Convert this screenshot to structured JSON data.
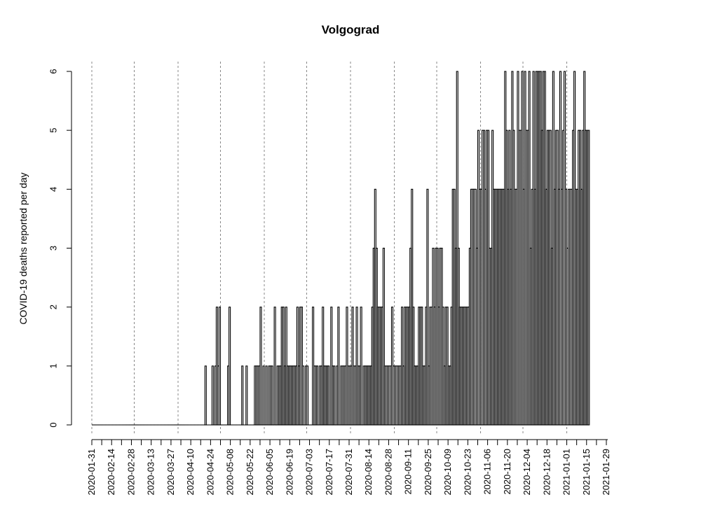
{
  "chart_data": {
    "type": "bar",
    "title": "Volgograd",
    "xlabel": "",
    "ylabel": "COVID-19 deaths reported per day",
    "ylim": [
      0,
      6
    ],
    "yticks": [
      0,
      1,
      2,
      3,
      4,
      5,
      6
    ],
    "x_start": "2020-01-31",
    "x_end": "2021-01-30",
    "xtick_labels": [
      "2020-01-31",
      "2020-02-14",
      "2020-02-28",
      "2020-03-13",
      "2020-03-27",
      "2020-04-10",
      "2020-04-24",
      "2020-05-08",
      "2020-05-22",
      "2020-06-05",
      "2020-06-19",
      "2020-07-03",
      "2020-07-17",
      "2020-07-31",
      "2020-08-14",
      "2020-08-28",
      "2020-09-11",
      "2020-09-25",
      "2020-10-09",
      "2020-10-23",
      "2020-11-06",
      "2020-11-20",
      "2020-12-04",
      "2020-12-18",
      "2021-01-01",
      "2021-01-15",
      "2021-01-29"
    ],
    "vlines": [
      "2020-01-31",
      "2020-03-01",
      "2020-04-01",
      "2020-05-01",
      "2020-06-01",
      "2020-07-01",
      "2020-08-01",
      "2020-09-01",
      "2020-10-01",
      "2020-11-01",
      "2020-12-01",
      "2021-01-01"
    ],
    "values": [
      0,
      0,
      0,
      0,
      0,
      0,
      0,
      0,
      0,
      0,
      0,
      0,
      0,
      0,
      0,
      0,
      0,
      0,
      0,
      0,
      0,
      0,
      0,
      0,
      0,
      0,
      0,
      0,
      0,
      0,
      0,
      0,
      0,
      0,
      0,
      0,
      0,
      0,
      0,
      0,
      0,
      0,
      0,
      0,
      0,
      0,
      0,
      0,
      0,
      0,
      0,
      0,
      0,
      0,
      0,
      0,
      0,
      0,
      0,
      0,
      0,
      0,
      0,
      0,
      0,
      0,
      0,
      0,
      0,
      0,
      0,
      0,
      0,
      0,
      0,
      0,
      0,
      0,
      0,
      0,
      1,
      0,
      0,
      0,
      0,
      1,
      0,
      1,
      2,
      1,
      2,
      0,
      0,
      0,
      0,
      0,
      1,
      2,
      0,
      0,
      0,
      0,
      0,
      0,
      0,
      0,
      1,
      0,
      0,
      1,
      0,
      0,
      0,
      0,
      0,
      1,
      1,
      1,
      1,
      2,
      0,
      1,
      0,
      1,
      0,
      1,
      1,
      1,
      0,
      2,
      0,
      1,
      1,
      1,
      2,
      2,
      1,
      2,
      1,
      1,
      1,
      1,
      1,
      1,
      1,
      2,
      1,
      2,
      2,
      1,
      0,
      1,
      1,
      0,
      0,
      0,
      2,
      1,
      1,
      1,
      0,
      1,
      1,
      2,
      1,
      1,
      1,
      1,
      0,
      2,
      1,
      1,
      0,
      1,
      2,
      0,
      1,
      1,
      1,
      1,
      2,
      1,
      1,
      1,
      2,
      1,
      1,
      2,
      1,
      1,
      2,
      0,
      1,
      1,
      1,
      1,
      1,
      1,
      2,
      3,
      4,
      3,
      2,
      2,
      2,
      2,
      3,
      1,
      1,
      1,
      1,
      1,
      2,
      1,
      1,
      1,
      1,
      1,
      1,
      2,
      1,
      2,
      2,
      2,
      2,
      3,
      4,
      2,
      1,
      1,
      1,
      2,
      2,
      2,
      1,
      1,
      2,
      4,
      1,
      2,
      2,
      3,
      2,
      3,
      3,
      2,
      3,
      3,
      2,
      1,
      2,
      2,
      1,
      1,
      2,
      4,
      4,
      3,
      6,
      3,
      2,
      2,
      2,
      2,
      2,
      2,
      2,
      3,
      4,
      4,
      4,
      4,
      3,
      5,
      4,
      4,
      5,
      5,
      4,
      5,
      5,
      3,
      3,
      5,
      4,
      4,
      4,
      4,
      4,
      4,
      4,
      4,
      6,
      5,
      4,
      5,
      4,
      6,
      5,
      4,
      4,
      6,
      5,
      5,
      6,
      4,
      6,
      5,
      5,
      6,
      3,
      4,
      6,
      4,
      6,
      6,
      6,
      6,
      5,
      6,
      6,
      4,
      5,
      5,
      5,
      3,
      6,
      4,
      5,
      5,
      4,
      6,
      4,
      5,
      6,
      4,
      3,
      4,
      4,
      4,
      5,
      6,
      4,
      4,
      5,
      5,
      4,
      5,
      6,
      5,
      5,
      5
    ]
  }
}
